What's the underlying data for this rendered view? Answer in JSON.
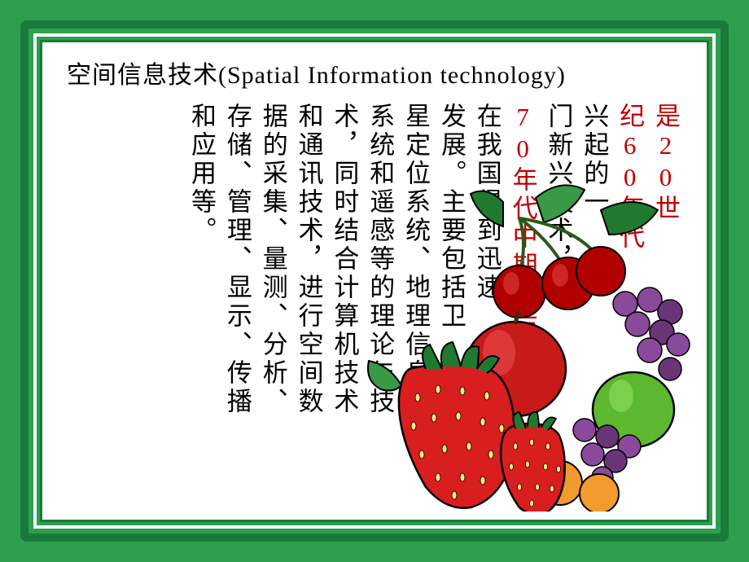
{
  "title": "空间信息技术(Spatial Information technology)",
  "columns": [
    {
      "text": "是20世",
      "colorClass": ""
    },
    {
      "text": "纪60年代",
      "colorClass": ""
    },
    {
      "text": "兴起的一",
      "colorClass": "black"
    },
    {
      "text": "门新兴技术，",
      "colorClass": "black"
    },
    {
      "text": "70年代中期以后",
      "colorClass": ""
    },
    {
      "text": "在我国得到迅速",
      "colorClass": "black"
    },
    {
      "text": "发展。主要包括卫",
      "colorClass": "black"
    },
    {
      "text": "星定位系统、地理信息",
      "colorClass": "black"
    },
    {
      "text": "系统和遥感等的理论与技",
      "colorClass": "black"
    },
    {
      "text": "术，同时结合计算机技术",
      "colorClass": "black"
    },
    {
      "text": "和通讯技术，进行空间数",
      "colorClass": "black"
    },
    {
      "text": "据的采集、量测、分析、",
      "colorClass": "black"
    },
    {
      "text": "存储、管理、显示、传播",
      "colorClass": "black"
    },
    {
      "text": "和应用等。",
      "colorClass": "black"
    }
  ],
  "colors": {
    "background": "#2d9f4f",
    "darkBorder": "#1a7a3a",
    "white": "#ffffff",
    "redText": "#c00000",
    "blackText": "#000000"
  },
  "fruit": {
    "strawberry_red": "#d81e1e",
    "strawberry_dark": "#a01010",
    "cherry_red": "#b00000",
    "apple_red": "#c91a1a",
    "apple_green": "#5cb82e",
    "grape_purple": "#8a4a9c",
    "grape_dark": "#6a3578",
    "orange": "#f29a2e",
    "leaf_green": "#1f7a2f",
    "leaf_light": "#3a9945",
    "outline": "#000000",
    "seed_yellow": "#ffe680"
  }
}
